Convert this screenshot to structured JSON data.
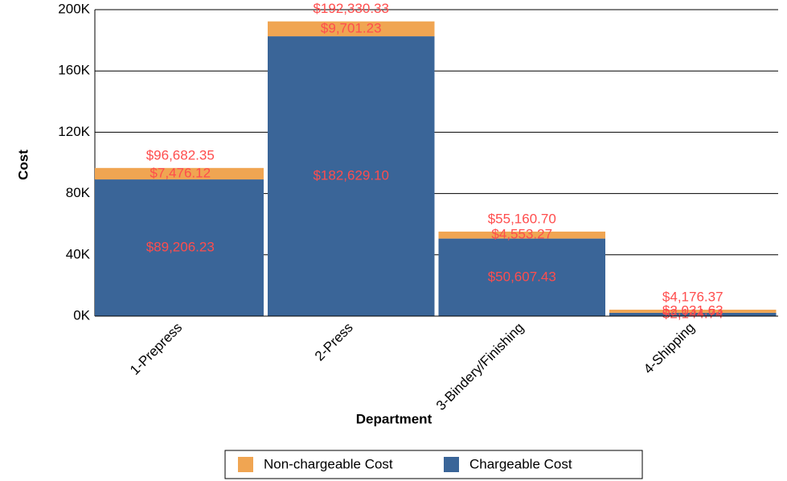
{
  "chart_data": {
    "type": "stacked_bar",
    "x_label": "Department",
    "y_label": "Cost",
    "categories": [
      "1-Prepress",
      "2-Press",
      "3-Bindery/Finishing",
      "4-Shipping"
    ],
    "series": [
      {
        "name": "Chargeable Cost",
        "color": "#3a6598",
        "values": [
          89206.23,
          182629.1,
          50607.43,
          2144.74
        ],
        "value_labels": [
          "$89,206.23",
          "$182,629.10",
          "$50,607.43",
          "$2,144.74"
        ]
      },
      {
        "name": "Non-chargeable Cost",
        "color": "#f0a552",
        "values": [
          7476.12,
          9701.23,
          4553.27,
          2031.63
        ],
        "value_labels": [
          "$7,476.12",
          "$9,701.23",
          "$4,553.27",
          "$2,031.63"
        ]
      }
    ],
    "total_labels": [
      "$96,682.35",
      "$192,330.33",
      "$55,160.70",
      "$4,176.37"
    ],
    "ylim": [
      0,
      200000
    ],
    "yticks": [
      {
        "value": 0,
        "label": "0K"
      },
      {
        "value": 40000,
        "label": "40K"
      },
      {
        "value": 80000,
        "label": "80K"
      },
      {
        "value": 120000,
        "label": "120K"
      },
      {
        "value": 160000,
        "label": "160K"
      },
      {
        "value": 200000,
        "label": "200K"
      }
    ],
    "grid": true,
    "label_color": "#ff4d4d"
  }
}
